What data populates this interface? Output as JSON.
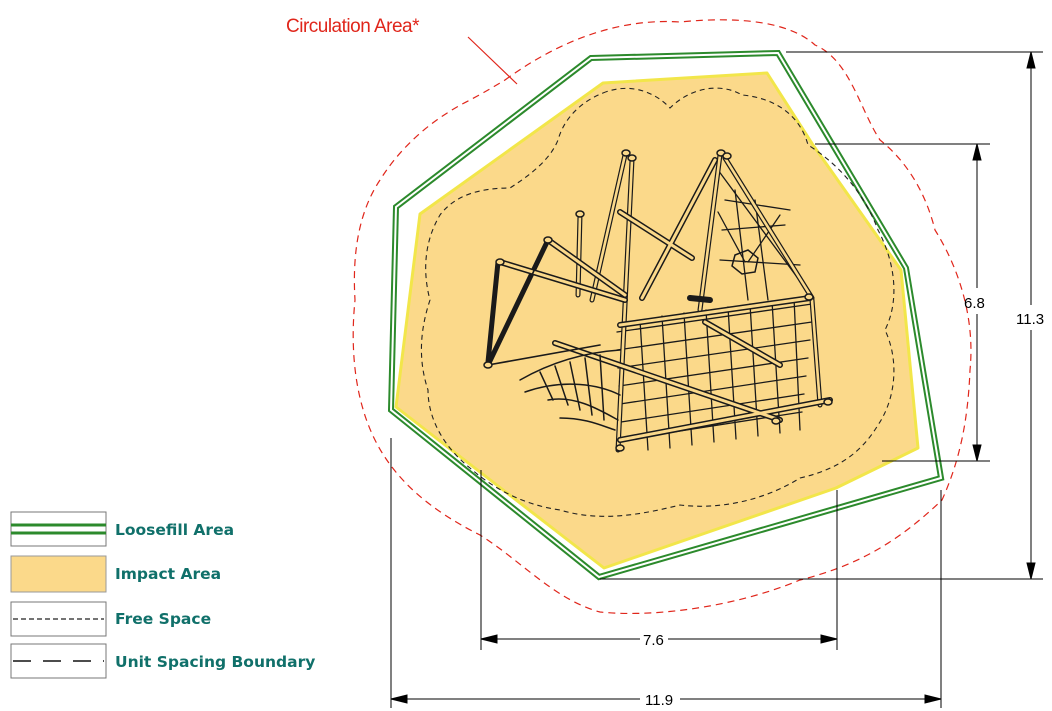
{
  "callout": {
    "label": "Circulation Area*"
  },
  "dimensions": {
    "overall_depth": "11.3",
    "structure_depth": "6.8",
    "structure_width": "7.6",
    "overall_width": "11.9"
  },
  "legend": {
    "items": [
      {
        "key": "loosefill",
        "label": "Loosefill Area"
      },
      {
        "key": "impact",
        "label": "Impact Area"
      },
      {
        "key": "free_space",
        "label": "Free Space"
      },
      {
        "key": "unit_spacing",
        "label": "Unit Spacing Boundary"
      }
    ]
  },
  "colors": {
    "impact_fill": "#fbd98a",
    "impact_edge": "#f2e64a",
    "loosefill_green": "#2c8a2c",
    "circulation_red": "#e0261b",
    "legend_text": "#10706a"
  }
}
